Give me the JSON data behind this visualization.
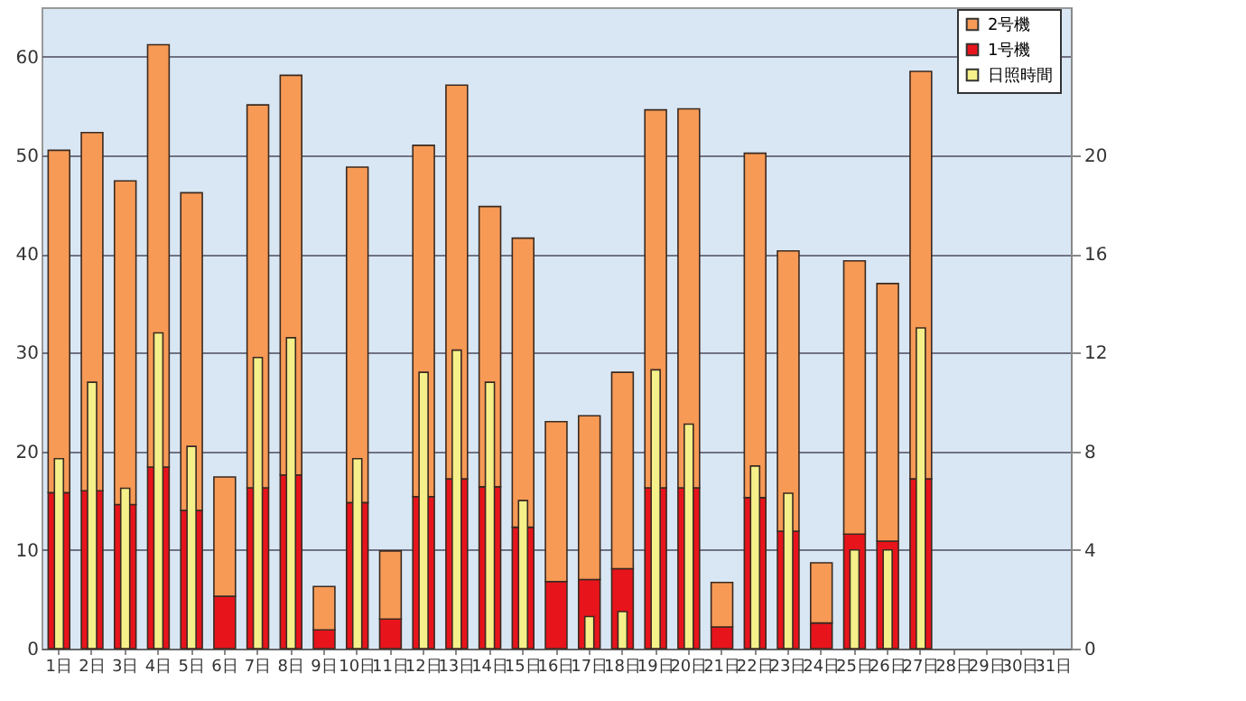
{
  "chart_data": {
    "type": "bar",
    "stacked": true,
    "categories": [
      "1日",
      "2日",
      "3日",
      "4日",
      "5日",
      "6日",
      "7日",
      "8日",
      "9日",
      "10日",
      "11日",
      "12日",
      "13日",
      "14日",
      "15日",
      "16日",
      "17日",
      "18日",
      "19日",
      "20日",
      "21日",
      "22日",
      "23日",
      "24日",
      "25日",
      "26日",
      "27日",
      "28日",
      "29日",
      "30日",
      "31日"
    ],
    "series": [
      {
        "name": "1号機",
        "color": "#e8141c",
        "values": [
          15.8,
          16,
          14.6,
          18.4,
          14,
          5.3,
          16.3,
          17.6,
          1.9,
          14.8,
          3,
          15.4,
          17.2,
          16.4,
          12.3,
          6.8,
          7.0,
          8.1,
          16.3,
          16.3,
          2.2,
          15.3,
          11.9,
          2.6,
          11.6,
          10.9,
          17.2,
          null,
          null,
          null,
          null
        ]
      },
      {
        "name": "2号機",
        "color": "#f79a56",
        "values": [
          34.7,
          36.3,
          32.8,
          42.8,
          32.2,
          12.1,
          38.8,
          40.5,
          4.4,
          34,
          6.9,
          35.6,
          39.9,
          28.4,
          29.3,
          16.2,
          16.6,
          19.9,
          38.3,
          38.4,
          4.5,
          34.9,
          28.4,
          6.1,
          27.7,
          26.1,
          41.3,
          null,
          null,
          null,
          null
        ]
      },
      {
        "name": "日照時間",
        "color": "#f5f08a",
        "axis": "y2",
        "values": [
          7.7,
          10.8,
          6.5,
          12.8,
          8.2,
          null,
          11.8,
          12.6,
          null,
          7.7,
          null,
          11.2,
          12.1,
          10.8,
          6.0,
          null,
          1.3,
          1.5,
          11.3,
          9.1,
          null,
          7.4,
          6.3,
          null,
          4.0,
          4.0,
          13.0,
          null,
          null,
          null,
          null
        ]
      }
    ],
    "ylim": [
      0,
      65
    ],
    "yticks": [
      0,
      10,
      20,
      30,
      40,
      50,
      60
    ],
    "y2lim": [
      0,
      26
    ],
    "y2ticks": [
      0,
      4,
      8,
      12,
      16,
      20
    ],
    "grid": "y",
    "legend": "top right"
  }
}
